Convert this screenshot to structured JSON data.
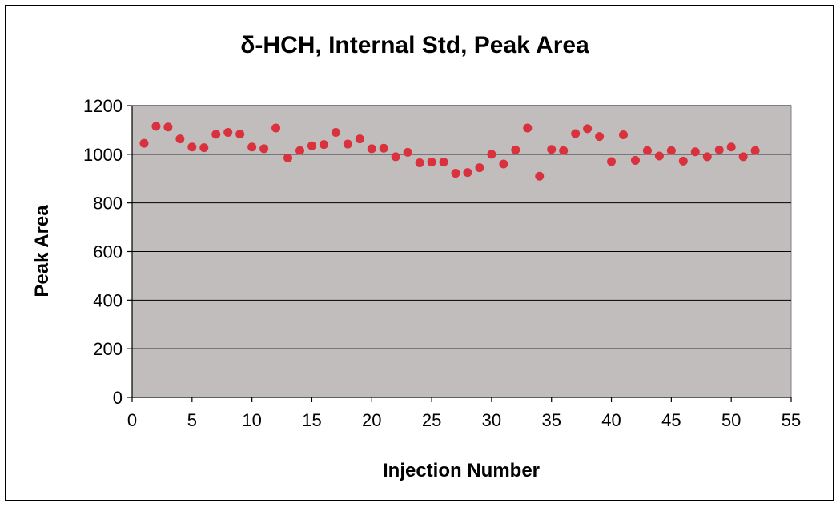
{
  "chart_data": {
    "type": "scatter",
    "title": "δ-HCH, Internal Std, Peak Area",
    "xlabel": "Injection Number",
    "ylabel": "Peak Area",
    "xlim": [
      0,
      55
    ],
    "ylim": [
      0,
      1200
    ],
    "x_ticks": [
      "0",
      "5",
      "10",
      "15",
      "20",
      "25",
      "30",
      "35",
      "40",
      "45",
      "50",
      "55"
    ],
    "y_ticks": [
      "0",
      "200",
      "400",
      "600",
      "800",
      "1000",
      "1200"
    ],
    "grid": "horizontal",
    "legend": "none",
    "colors": {
      "plot_background": "#c0bdbc",
      "marker": "#d9313d",
      "gridline": "#000000"
    },
    "x": [
      1,
      2,
      3,
      4,
      5,
      6,
      7,
      8,
      9,
      10,
      11,
      12,
      13,
      14,
      15,
      16,
      17,
      18,
      19,
      20,
      21,
      22,
      23,
      24,
      25,
      26,
      27,
      28,
      29,
      30,
      31,
      32,
      33,
      34,
      35,
      36,
      37,
      38,
      39,
      40,
      41,
      42,
      43,
      44,
      45,
      46,
      47,
      48,
      49,
      50,
      51,
      52
    ],
    "y": [
      1045,
      1115,
      1112,
      1063,
      1030,
      1027,
      1082,
      1090,
      1083,
      1030,
      1023,
      1108,
      985,
      1015,
      1035,
      1040,
      1090,
      1042,
      1063,
      1023,
      1025,
      990,
      1008,
      965,
      968,
      968,
      922,
      925,
      945,
      1000,
      960,
      1018,
      1108,
      910,
      1020,
      1015,
      1085,
      1105,
      1073,
      970,
      1080,
      975,
      1015,
      993,
      1015,
      972,
      1010,
      990,
      1018,
      1030,
      990,
      1015
    ]
  }
}
